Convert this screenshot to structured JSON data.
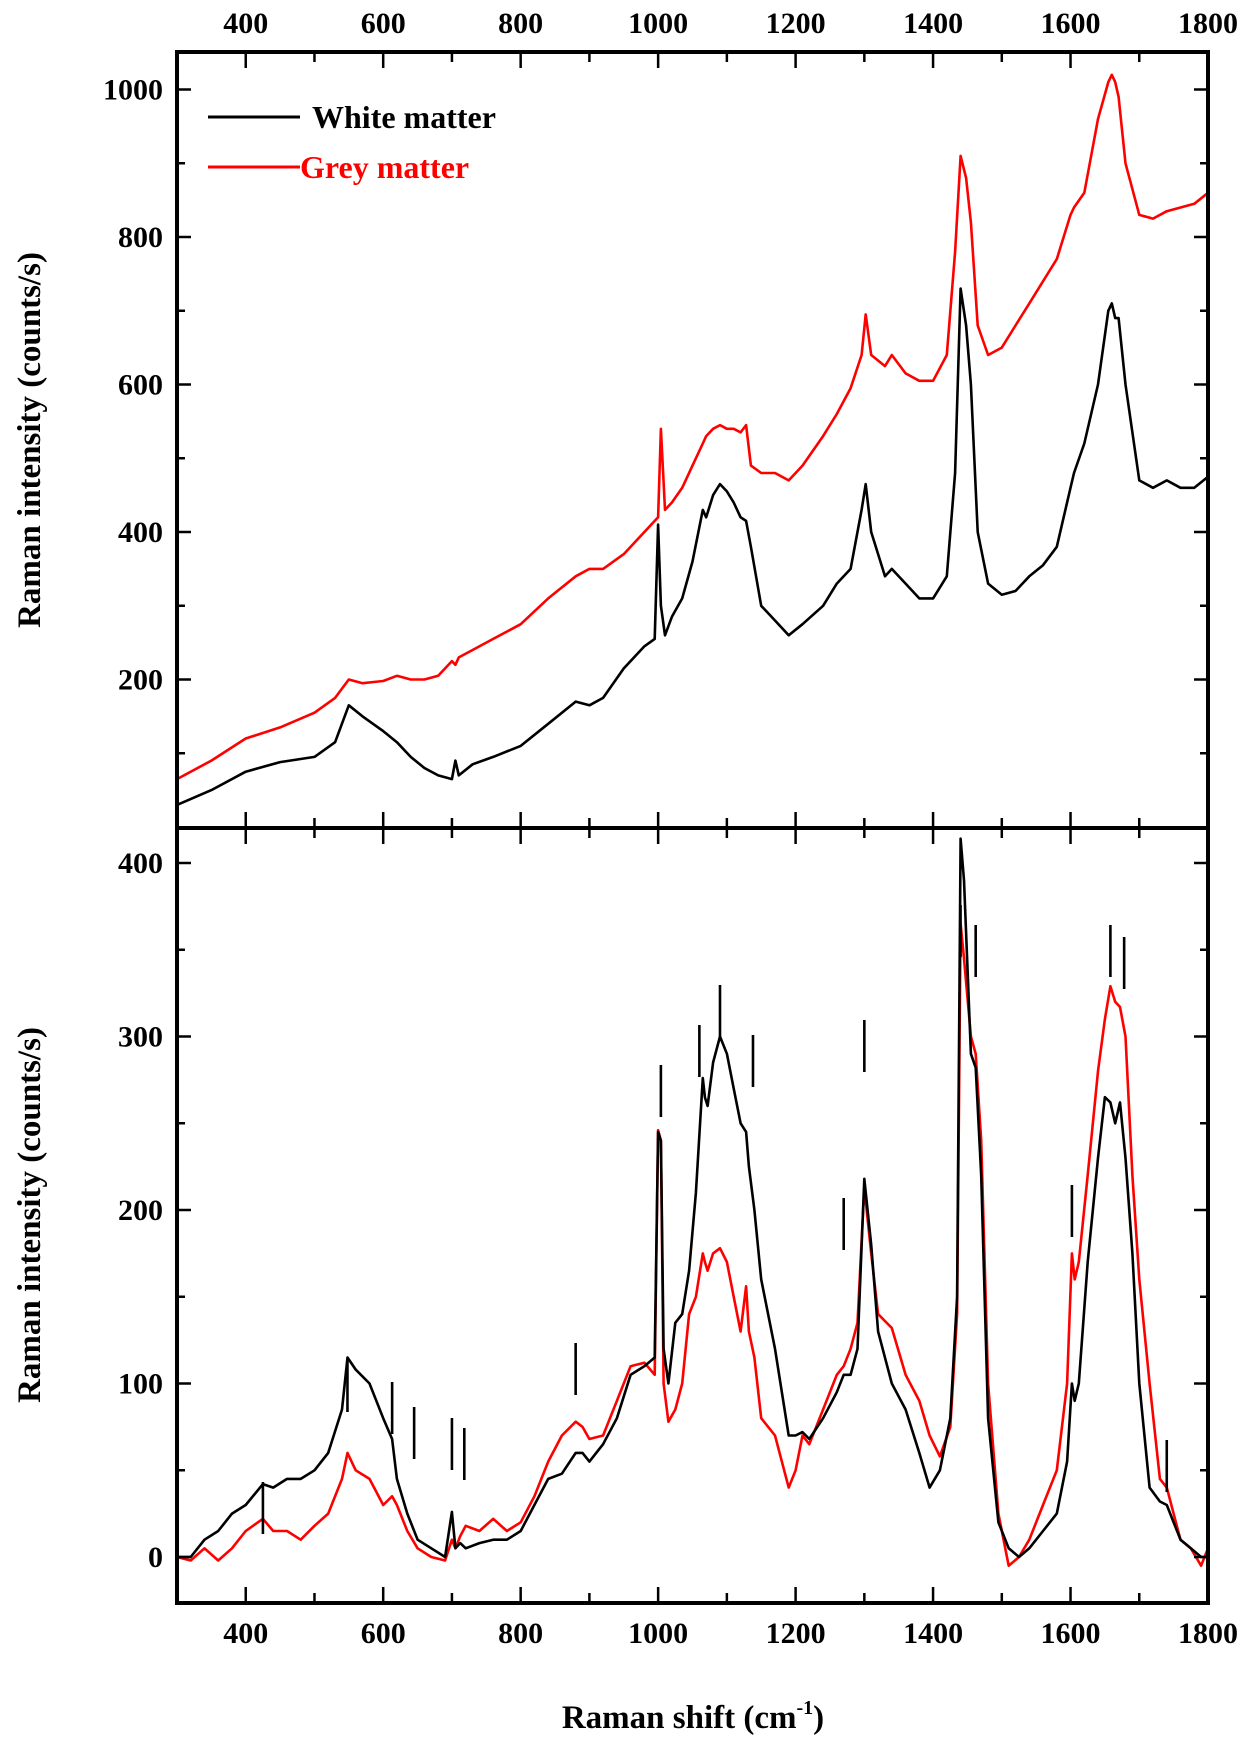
{
  "figure": {
    "top_xaxis_ticks": [
      "400",
      "600",
      "800",
      "1000",
      "1200",
      "1400",
      "1600",
      "1800"
    ],
    "bottom_xaxis_ticks": [
      "400",
      "600",
      "800",
      "1000",
      "1200",
      "1400",
      "1600",
      "1800"
    ],
    "xlabel_main": "Raman shift (cm",
    "xlabel_sup": "-1",
    "xlabel_close": ")",
    "top_ylabel": "Raman intensity (counts/s)",
    "bottom_ylabel": "Raman intensity (counts/s)",
    "top_yticks": [
      "200",
      "400",
      "600",
      "800",
      "1000"
    ],
    "bottom_yticks": [
      "0",
      "100",
      "200",
      "300",
      "400"
    ],
    "legend": [
      {
        "label": "White matter",
        "color": "#000000"
      },
      {
        "label": "Grey matter",
        "color": "#ff0000"
      }
    ]
  },
  "chart_data": [
    {
      "type": "line",
      "title": "Raw Raman spectra (top panel)",
      "xlabel": "Raman shift (cm-1)",
      "ylabel": "Raman intensity (counts/s)",
      "xlim": [
        300,
        1800
      ],
      "ylim": [
        0,
        1050
      ],
      "xticks": [
        400,
        600,
        800,
        1000,
        1200,
        1400,
        1600,
        1800
      ],
      "yticks": [
        200,
        400,
        600,
        800,
        1000
      ],
      "grid": false,
      "legend_position": "upper left",
      "x": [
        300,
        350,
        400,
        450,
        500,
        530,
        550,
        570,
        600,
        620,
        640,
        660,
        680,
        700,
        705,
        710,
        730,
        760,
        800,
        840,
        880,
        900,
        920,
        950,
        980,
        995,
        1000,
        1004,
        1010,
        1020,
        1035,
        1050,
        1065,
        1070,
        1080,
        1090,
        1100,
        1110,
        1120,
        1128,
        1135,
        1150,
        1170,
        1190,
        1210,
        1240,
        1260,
        1280,
        1296,
        1302,
        1310,
        1330,
        1340,
        1360,
        1380,
        1400,
        1420,
        1432,
        1440,
        1448,
        1455,
        1465,
        1480,
        1500,
        1520,
        1540,
        1560,
        1580,
        1600,
        1605,
        1620,
        1640,
        1655,
        1660,
        1665,
        1670,
        1680,
        1700,
        1720,
        1740,
        1760,
        1780,
        1800
      ],
      "series": [
        {
          "name": "White matter",
          "color": "#000000",
          "values": [
            30,
            50,
            75,
            88,
            95,
            115,
            165,
            150,
            130,
            115,
            95,
            80,
            70,
            65,
            90,
            70,
            85,
            95,
            110,
            140,
            170,
            165,
            175,
            215,
            245,
            255,
            410,
            300,
            260,
            285,
            310,
            360,
            430,
            420,
            450,
            465,
            455,
            440,
            420,
            415,
            380,
            300,
            280,
            260,
            275,
            300,
            330,
            350,
            430,
            465,
            400,
            340,
            350,
            330,
            310,
            310,
            340,
            480,
            730,
            680,
            600,
            400,
            330,
            315,
            320,
            340,
            355,
            380,
            460,
            480,
            520,
            600,
            700,
            710,
            690,
            690,
            600,
            470,
            460,
            470,
            460,
            460,
            475
          ]
        },
        {
          "name": "Grey matter",
          "color": "#ff0000",
          "values": [
            65,
            90,
            120,
            135,
            155,
            175,
            200,
            195,
            198,
            205,
            200,
            200,
            205,
            225,
            220,
            230,
            240,
            255,
            275,
            310,
            340,
            350,
            350,
            370,
            400,
            415,
            420,
            540,
            430,
            440,
            460,
            490,
            520,
            530,
            540,
            545,
            540,
            540,
            535,
            545,
            490,
            480,
            480,
            470,
            490,
            530,
            560,
            595,
            640,
            695,
            640,
            625,
            640,
            615,
            605,
            605,
            640,
            780,
            910,
            880,
            820,
            680,
            640,
            650,
            680,
            710,
            740,
            770,
            830,
            840,
            860,
            960,
            1010,
            1020,
            1010,
            990,
            900,
            830,
            825,
            835,
            840,
            845,
            860
          ]
        }
      ]
    },
    {
      "type": "line",
      "title": "Background-subtracted Raman spectra (bottom panel)",
      "xlabel": "Raman shift (cm-1)",
      "ylabel": "Raman intensity (counts/s)",
      "xlim": [
        300,
        1800
      ],
      "ylim": [
        -26,
        420
      ],
      "xticks": [
        400,
        600,
        800,
        1000,
        1200,
        1400,
        1600,
        1800
      ],
      "yticks": [
        0,
        100,
        200,
        300,
        400
      ],
      "grid": false,
      "annotations": {
        "peak_markers_cm-1": [
          425,
          548,
          613,
          645,
          700,
          718,
          880,
          1004,
          1060,
          1090,
          1138,
          1270,
          1300,
          1440,
          1462,
          1602,
          1658,
          1678,
          1740
        ]
      },
      "x": [
        300,
        320,
        340,
        360,
        380,
        400,
        425,
        440,
        460,
        480,
        500,
        520,
        540,
        548,
        560,
        580,
        600,
        613,
        620,
        635,
        650,
        670,
        690,
        700,
        705,
        712,
        720,
        740,
        760,
        780,
        800,
        820,
        840,
        860,
        880,
        890,
        900,
        920,
        940,
        960,
        980,
        995,
        1000,
        1004,
        1008,
        1015,
        1025,
        1035,
        1045,
        1055,
        1065,
        1068,
        1072,
        1080,
        1090,
        1100,
        1110,
        1120,
        1128,
        1132,
        1140,
        1150,
        1170,
        1190,
        1200,
        1210,
        1220,
        1240,
        1260,
        1270,
        1280,
        1290,
        1300,
        1310,
        1320,
        1340,
        1360,
        1380,
        1395,
        1410,
        1425,
        1435,
        1440,
        1445,
        1455,
        1462,
        1470,
        1480,
        1495,
        1510,
        1525,
        1540,
        1560,
        1580,
        1595,
        1602,
        1606,
        1612,
        1625,
        1640,
        1650,
        1658,
        1665,
        1672,
        1680,
        1690,
        1700,
        1715,
        1730,
        1740,
        1750,
        1760,
        1775,
        1790,
        1800
      ],
      "series": [
        {
          "name": "White matter",
          "color": "#000000",
          "values": [
            0,
            0,
            10,
            15,
            25,
            30,
            42,
            40,
            45,
            45,
            50,
            60,
            85,
            115,
            108,
            100,
            80,
            68,
            45,
            25,
            10,
            5,
            0,
            26,
            5,
            8,
            5,
            8,
            10,
            10,
            15,
            30,
            45,
            48,
            60,
            60,
            55,
            65,
            80,
            105,
            110,
            115,
            245,
            240,
            120,
            100,
            135,
            140,
            165,
            210,
            276,
            265,
            260,
            285,
            300,
            290,
            270,
            250,
            245,
            225,
            200,
            160,
            120,
            70,
            70,
            72,
            68,
            80,
            95,
            105,
            105,
            120,
            218,
            180,
            130,
            100,
            85,
            60,
            40,
            50,
            80,
            150,
            414,
            390,
            290,
            282,
            220,
            80,
            20,
            5,
            0,
            5,
            15,
            25,
            55,
            100,
            90,
            100,
            170,
            230,
            265,
            262,
            250,
            262,
            230,
            175,
            100,
            40,
            32,
            30,
            20,
            10,
            5,
            0,
            0
          ]
        },
        {
          "name": "Grey matter",
          "color": "#ff0000",
          "values": [
            0,
            -2,
            5,
            -2,
            5,
            15,
            22,
            15,
            15,
            10,
            18,
            25,
            45,
            60,
            50,
            45,
            30,
            35,
            30,
            15,
            5,
            0,
            -2,
            10,
            5,
            12,
            18,
            15,
            22,
            15,
            20,
            35,
            55,
            70,
            78,
            75,
            68,
            70,
            90,
            110,
            112,
            105,
            246,
            240,
            100,
            78,
            85,
            100,
            140,
            150,
            175,
            170,
            165,
            175,
            178,
            170,
            150,
            130,
            156,
            130,
            115,
            80,
            70,
            40,
            50,
            70,
            65,
            85,
            105,
            110,
            120,
            135,
            213,
            175,
            140,
            132,
            105,
            90,
            70,
            58,
            75,
            140,
            365,
            345,
            300,
            290,
            240,
            100,
            25,
            -5,
            0,
            10,
            30,
            50,
            100,
            175,
            160,
            170,
            220,
            280,
            310,
            329,
            320,
            317,
            300,
            220,
            160,
            100,
            45,
            40,
            25,
            10,
            5,
            -5,
            5
          ]
        }
      ]
    }
  ]
}
